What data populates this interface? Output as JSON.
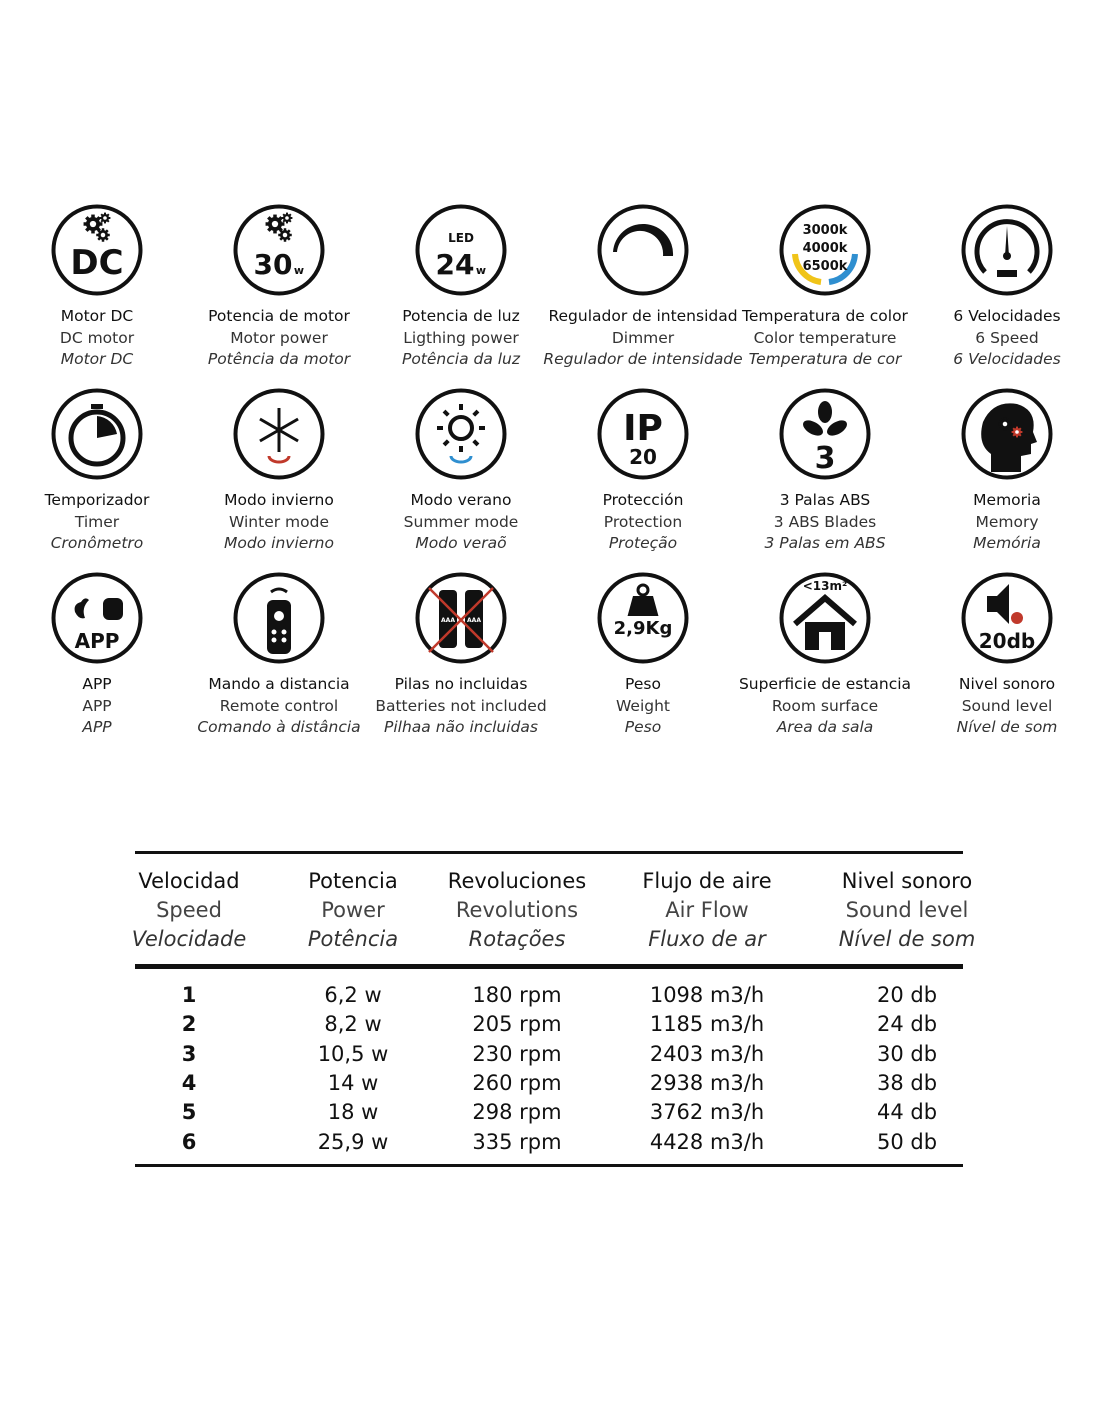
{
  "features": [
    {
      "icon": "dc-motor-icon",
      "icon_text": [
        "DC"
      ],
      "es": "Motor DC",
      "en": "DC motor",
      "pt": "Motor DC"
    },
    {
      "icon": "motor-power-icon",
      "icon_text": [
        "30",
        "w"
      ],
      "es": "Potencia de motor",
      "en": "Motor power",
      "pt": "Potência da motor"
    },
    {
      "icon": "led-power-icon",
      "icon_text": [
        "LED",
        "24",
        "w"
      ],
      "es": "Potencia de luz",
      "en": "Ligthing power",
      "pt": "Potência da luz"
    },
    {
      "icon": "dimmer-icon",
      "icon_text": [],
      "es": "Regulador de intensidad",
      "en": "Dimmer",
      "pt": "Regulador de intensidade"
    },
    {
      "icon": "color-temperature-icon",
      "icon_text": [
        "3000k",
        "4000k",
        "6500k"
      ],
      "es": "Temperatura de color",
      "en": "Color temperature",
      "pt": "Temperatura de cor"
    },
    {
      "icon": "speedometer-icon",
      "icon_text": [],
      "es": "6 Velocidades",
      "en": "6 Speed",
      "pt": "6 Velocidades"
    },
    {
      "icon": "timer-icon",
      "icon_text": [],
      "es": "Temporizador",
      "en": "Timer",
      "pt": "Cronômetro"
    },
    {
      "icon": "snowflake-icon",
      "icon_text": [],
      "es": "Modo invierno",
      "en": "Winter mode",
      "pt": "Modo invierno"
    },
    {
      "icon": "sun-icon",
      "icon_text": [],
      "es": "Modo verano",
      "en": "Summer mode",
      "pt": "Modo veraõ"
    },
    {
      "icon": "ip-rating-icon",
      "icon_text": [
        "IP",
        "20"
      ],
      "es": "Protección",
      "en": "Protection",
      "pt": "Proteção"
    },
    {
      "icon": "fan-blades-icon",
      "icon_text": [
        "3"
      ],
      "es": "3 Palas ABS",
      "en": "3 ABS Blades",
      "pt": "3 Palas em ABS"
    },
    {
      "icon": "memory-head-icon",
      "icon_text": [],
      "es": "Memoria",
      "en": "Memory",
      "pt": "Memória"
    },
    {
      "icon": "app-icon",
      "icon_text": [
        "APP"
      ],
      "es": "APP",
      "en": "APP",
      "pt": "APP"
    },
    {
      "icon": "remote-control-icon",
      "icon_text": [],
      "es": "Mando a distancia",
      "en": "Remote control",
      "pt": "Comando à distância"
    },
    {
      "icon": "batteries-crossed-icon",
      "icon_text": [
        "AAA",
        "AAA"
      ],
      "es": "Pilas no incluidas",
      "en": "Batteries not included",
      "pt": "Pilhaa não incluidas"
    },
    {
      "icon": "weight-icon",
      "icon_text": [
        "2,9Kg"
      ],
      "es": "Peso",
      "en": "Weight",
      "pt": "Peso"
    },
    {
      "icon": "house-icon",
      "icon_text": [
        "<13m²"
      ],
      "es": "Superficie de estancia",
      "en": "Room surface",
      "pt": "Area da sala"
    },
    {
      "icon": "speaker-icon",
      "icon_text": [
        "20db"
      ],
      "es": "Nivel sonoro",
      "en": "Sound level",
      "pt": "Nível de som"
    }
  ],
  "colors": {
    "warm": "#f0c419",
    "cool": "#2f8fd0",
    "red": "#c0392b"
  },
  "table": {
    "headers": [
      {
        "es": "Velocidad",
        "en": "Speed",
        "pt": "Velocidade"
      },
      {
        "es": "Potencia",
        "en": "Power",
        "pt": "Potência"
      },
      {
        "es": "Revoluciones",
        "en": "Revolutions",
        "pt": "Rotações"
      },
      {
        "es": "Flujo de aire",
        "en": "Air Flow",
        "pt": "Fluxo de ar"
      },
      {
        "es": "Nivel sonoro",
        "en": "Sound level",
        "pt": "Nível de som"
      }
    ],
    "rows": [
      [
        "1",
        "6,2 w",
        "180 rpm",
        "1098 m3/h",
        "20 db"
      ],
      [
        "2",
        "8,2 w",
        "205 rpm",
        "1185 m3/h",
        "24 db"
      ],
      [
        "3",
        "10,5 w",
        "230 rpm",
        "2403 m3/h",
        "30 db"
      ],
      [
        "4",
        "14 w",
        "260 rpm",
        "2938 m3/h",
        "38 db"
      ],
      [
        "5",
        "18 w",
        "298 rpm",
        "3762 m3/h",
        "44 db"
      ],
      [
        "6",
        "25,9 w",
        "335 rpm",
        "4428 m3/h",
        "50 db"
      ]
    ]
  }
}
